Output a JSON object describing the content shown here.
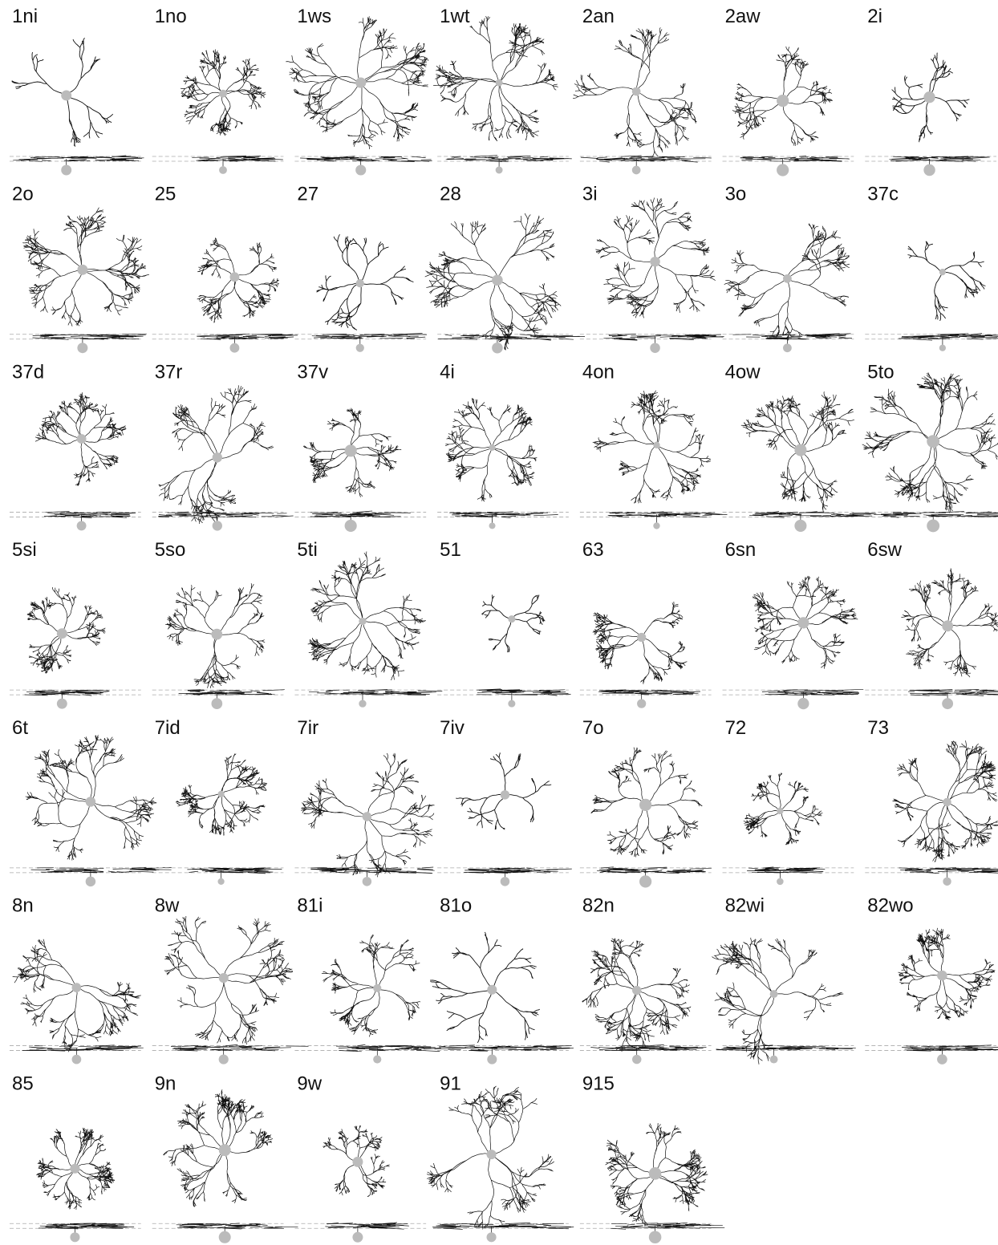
{
  "cells": [
    "1ni",
    "1no",
    "1ws",
    "1wt",
    "2an",
    "2aw",
    "2i",
    "2o",
    "25",
    "27",
    "28",
    "3i",
    "3o",
    "37c",
    "37d",
    "37r",
    "37v",
    "4i",
    "4on",
    "4ow",
    "5to",
    "5si",
    "5so",
    "5ti",
    "51",
    "63",
    "6sn",
    "6sw",
    "6t",
    "7id",
    "7ir",
    "7iv",
    "7o",
    "72",
    "73",
    "8n",
    "8w",
    "81i",
    "81o",
    "82n",
    "82wi",
    "82wo",
    "85",
    "9n",
    "9w",
    "91",
    "915"
  ]
}
